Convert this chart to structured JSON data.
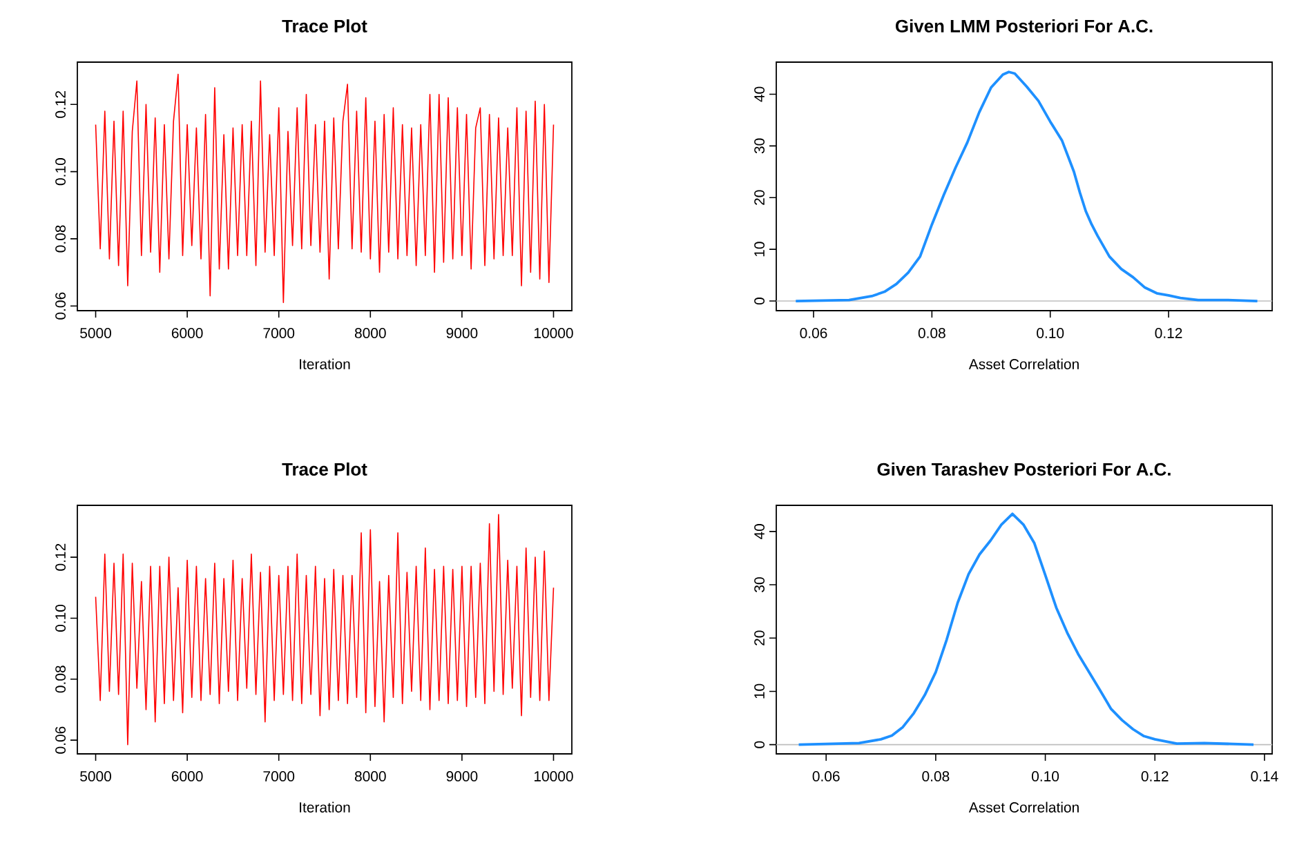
{
  "chart_data": [
    {
      "type": "line",
      "title": "Trace Plot",
      "xlabel": "Iteration",
      "x": [
        5000,
        5050,
        5100,
        5150,
        5200,
        5250,
        5300,
        5350,
        5400,
        5450,
        5500,
        5550,
        5600,
        5650,
        5700,
        5750,
        5800,
        5850,
        5900,
        5950,
        6000,
        6050,
        6100,
        6150,
        6200,
        6250,
        6300,
        6350,
        6400,
        6450,
        6500,
        6550,
        6600,
        6650,
        6700,
        6750,
        6800,
        6850,
        6900,
        6950,
        7000,
        7050,
        7100,
        7150,
        7200,
        7250,
        7300,
        7350,
        7400,
        7450,
        7500,
        7550,
        7600,
        7650,
        7700,
        7750,
        7800,
        7850,
        7900,
        7950,
        8000,
        8050,
        8100,
        8150,
        8200,
        8250,
        8300,
        8350,
        8400,
        8450,
        8500,
        8550,
        8600,
        8650,
        8700,
        8750,
        8800,
        8850,
        8900,
        8950,
        9000,
        9050,
        9100,
        9150,
        9200,
        9250,
        9300,
        9350,
        9400,
        9450,
        9500,
        9550,
        9600,
        9650,
        9700,
        9750,
        9800,
        9850,
        9900,
        9950,
        10000
      ],
      "series": [
        {
          "color": "#ff0000",
          "values": [
            0.114,
            0.077,
            0.118,
            0.074,
            0.115,
            0.072,
            0.118,
            0.066,
            0.112,
            0.127,
            0.075,
            0.12,
            0.076,
            0.116,
            0.07,
            0.114,
            0.074,
            0.115,
            0.129,
            0.075,
            0.114,
            0.078,
            0.113,
            0.074,
            0.117,
            0.063,
            0.125,
            0.071,
            0.111,
            0.071,
            0.113,
            0.075,
            0.114,
            0.075,
            0.115,
            0.072,
            0.127,
            0.076,
            0.111,
            0.075,
            0.119,
            0.061,
            0.112,
            0.078,
            0.119,
            0.077,
            0.123,
            0.078,
            0.114,
            0.076,
            0.115,
            0.068,
            0.116,
            0.077,
            0.115,
            0.126,
            0.077,
            0.118,
            0.076,
            0.122,
            0.074,
            0.115,
            0.07,
            0.117,
            0.076,
            0.119,
            0.074,
            0.114,
            0.075,
            0.113,
            0.072,
            0.114,
            0.075,
            0.123,
            0.07,
            0.123,
            0.073,
            0.122,
            0.074,
            0.119,
            0.075,
            0.117,
            0.071,
            0.113,
            0.119,
            0.072,
            0.117,
            0.074,
            0.116,
            0.075,
            0.113,
            0.075,
            0.119,
            0.066,
            0.118,
            0.07,
            0.121,
            0.068,
            0.12,
            0.067,
            0.114
          ]
        }
      ],
      "xlim": [
        4800,
        10200
      ],
      "ylim": [
        0.0586,
        0.1326
      ],
      "xticks": [
        5000,
        6000,
        7000,
        8000,
        9000,
        10000
      ],
      "yticks": [
        {
          "value": 0.06,
          "label": "0.06"
        },
        {
          "value": 0.08,
          "label": "0.08"
        },
        {
          "value": 0.1,
          "label": "0.10"
        },
        {
          "value": 0.12,
          "label": "0.12"
        }
      ]
    },
    {
      "type": "line",
      "title": "Given LMM Posteriori For A.C.",
      "xlabel": "Asset Correlation",
      "x": [
        0.057,
        0.066,
        0.07,
        0.072,
        0.074,
        0.076,
        0.078,
        0.08,
        0.082,
        0.084,
        0.086,
        0.088,
        0.09,
        0.092,
        0.093,
        0.094,
        0.096,
        0.098,
        0.1,
        0.102,
        0.104,
        0.105,
        0.106,
        0.107,
        0.108,
        0.11,
        0.112,
        0.114,
        0.116,
        0.118,
        0.12,
        0.122,
        0.125,
        0.13,
        0.135
      ],
      "series": [
        {
          "color": "#1e90ff",
          "values": [
            0,
            0.2,
            1.0,
            1.8,
            3.3,
            5.5,
            8.6,
            14.8,
            20.5,
            25.8,
            30.7,
            36.5,
            41.3,
            43.8,
            44.3,
            44,
            41.5,
            38.7,
            34.7,
            31,
            25,
            21,
            17.4,
            14.8,
            12.6,
            8.6,
            6.2,
            4.6,
            2.6,
            1.5,
            1.1,
            0.6,
            0.2,
            0.2,
            0
          ]
        }
      ],
      "xlim": [
        0.0537,
        0.1375
      ],
      "ylim": [
        -1.86,
        46.2
      ],
      "xticks": [
        {
          "value": 0.06,
          "label": "0.06"
        },
        {
          "value": 0.08,
          "label": "0.08"
        },
        {
          "value": 0.1,
          "label": "0.10"
        },
        {
          "value": 0.12,
          "label": "0.12"
        }
      ],
      "yticks": [
        0,
        10,
        20,
        30,
        40
      ],
      "ref_lines": [
        {
          "axis": "y",
          "value": 0,
          "color": "#bebebe"
        }
      ]
    },
    {
      "type": "line",
      "title": "Trace Plot",
      "xlabel": "Iteration",
      "x": [
        5000,
        5050,
        5100,
        5150,
        5200,
        5250,
        5300,
        5350,
        5400,
        5450,
        5500,
        5550,
        5600,
        5650,
        5700,
        5750,
        5800,
        5850,
        5900,
        5950,
        6000,
        6050,
        6100,
        6150,
        6200,
        6250,
        6300,
        6350,
        6400,
        6450,
        6500,
        6550,
        6600,
        6650,
        6700,
        6750,
        6800,
        6850,
        6900,
        6950,
        7000,
        7050,
        7100,
        7150,
        7200,
        7250,
        7300,
        7350,
        7400,
        7450,
        7500,
        7550,
        7600,
        7650,
        7700,
        7750,
        7800,
        7850,
        7900,
        7950,
        8000,
        8050,
        8100,
        8150,
        8200,
        8250,
        8300,
        8350,
        8400,
        8450,
        8500,
        8550,
        8600,
        8650,
        8700,
        8750,
        8800,
        8850,
        8900,
        8950,
        9000,
        9050,
        9100,
        9150,
        9200,
        9250,
        9300,
        9350,
        9400,
        9450,
        9500,
        9550,
        9600,
        9650,
        9700,
        9750,
        9800,
        9850,
        9900,
        9950,
        10000
      ],
      "series": [
        {
          "color": "#ff0000",
          "values": [
            0.107,
            0.073,
            0.121,
            0.076,
            0.118,
            0.075,
            0.121,
            0.0585,
            0.118,
            0.077,
            0.112,
            0.07,
            0.117,
            0.066,
            0.117,
            0.072,
            0.12,
            0.073,
            0.11,
            0.069,
            0.119,
            0.074,
            0.117,
            0.073,
            0.113,
            0.075,
            0.118,
            0.072,
            0.113,
            0.076,
            0.119,
            0.073,
            0.113,
            0.077,
            0.121,
            0.075,
            0.115,
            0.066,
            0.117,
            0.073,
            0.114,
            0.075,
            0.117,
            0.073,
            0.121,
            0.072,
            0.114,
            0.075,
            0.117,
            0.068,
            0.113,
            0.07,
            0.116,
            0.073,
            0.114,
            0.072,
            0.114,
            0.074,
            0.128,
            0.069,
            0.129,
            0.071,
            0.112,
            0.066,
            0.114,
            0.074,
            0.128,
            0.072,
            0.115,
            0.076,
            0.117,
            0.073,
            0.123,
            0.07,
            0.116,
            0.073,
            0.117,
            0.072,
            0.116,
            0.073,
            0.117,
            0.071,
            0.117,
            0.074,
            0.118,
            0.072,
            0.131,
            0.076,
            0.134,
            0.075,
            0.119,
            0.077,
            0.117,
            0.068,
            0.123,
            0.074,
            0.12,
            0.073,
            0.122,
            0.073,
            0.11
          ]
        }
      ],
      "xlim": [
        4800,
        10200
      ],
      "ylim": [
        0.0555,
        0.137
      ],
      "xticks": [
        5000,
        6000,
        7000,
        8000,
        9000,
        10000
      ],
      "yticks": [
        {
          "value": 0.06,
          "label": "0.06"
        },
        {
          "value": 0.08,
          "label": "0.08"
        },
        {
          "value": 0.1,
          "label": "0.10"
        },
        {
          "value": 0.12,
          "label": "0.12"
        }
      ]
    },
    {
      "type": "line",
      "title": "Given Tarashev Posteriori For A.C.",
      "xlabel": "Asset Correlation",
      "x": [
        0.055,
        0.066,
        0.07,
        0.072,
        0.074,
        0.076,
        0.078,
        0.08,
        0.082,
        0.084,
        0.086,
        0.088,
        0.09,
        0.092,
        0.094,
        0.096,
        0.098,
        0.1,
        0.102,
        0.104,
        0.106,
        0.108,
        0.11,
        0.112,
        0.114,
        0.116,
        0.118,
        0.12,
        0.124,
        0.129,
        0.138
      ],
      "series": [
        {
          "color": "#1e90ff",
          "values": [
            0,
            0.3,
            1,
            1.7,
            3.3,
            5.9,
            9.3,
            13.6,
            19.7,
            26.6,
            32,
            35.7,
            38.3,
            41.3,
            43.3,
            41.3,
            37.8,
            31.8,
            25.7,
            21,
            17,
            13.6,
            10.2,
            6.7,
            4.6,
            2.9,
            1.6,
            1,
            0.2,
            0.3,
            0
          ]
        }
      ],
      "xlim": [
        0.0509,
        0.1414
      ],
      "ylim": [
        -1.73,
        44.9
      ],
      "xticks": [
        {
          "value": 0.06,
          "label": "0.06"
        },
        {
          "value": 0.08,
          "label": "0.08"
        },
        {
          "value": 0.1,
          "label": "0.10"
        },
        {
          "value": 0.12,
          "label": "0.12"
        },
        {
          "value": 0.14,
          "label": "0.14"
        }
      ],
      "yticks": [
        0,
        10,
        20,
        30,
        40
      ],
      "ref_lines": [
        {
          "axis": "y",
          "value": 0,
          "color": "#bebebe"
        }
      ]
    }
  ]
}
